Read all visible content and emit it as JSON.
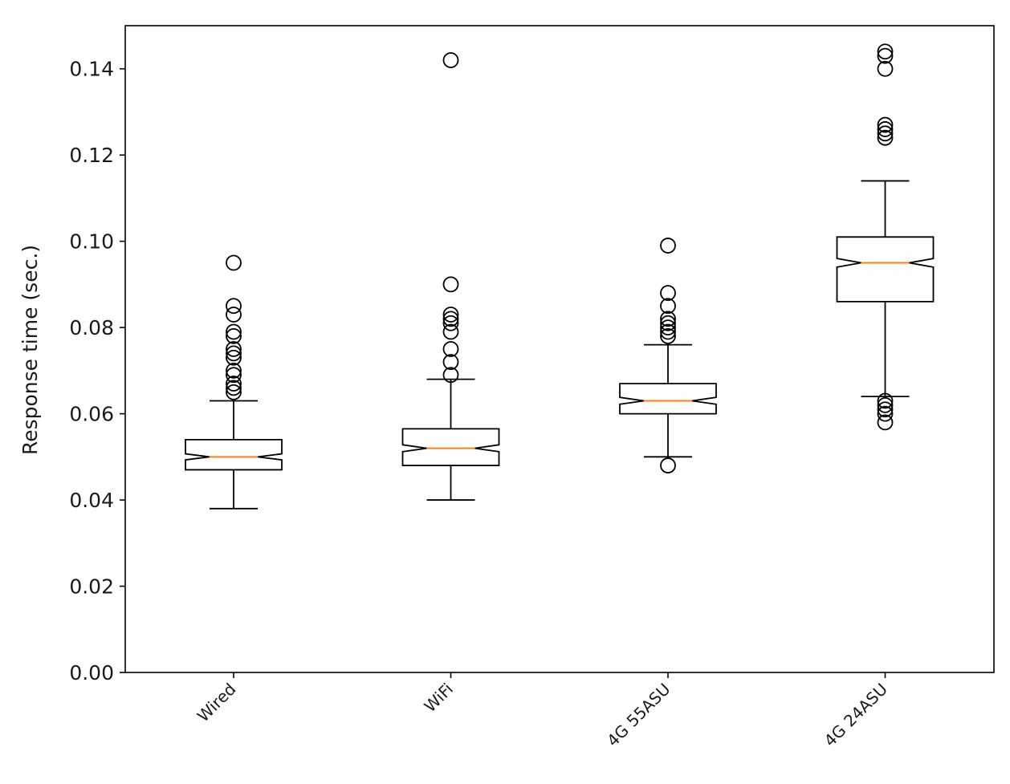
{
  "chart_data": {
    "type": "boxplot",
    "notched": true,
    "title": "",
    "xlabel": "",
    "ylabel": "Response time (sec.)",
    "ylim": [
      0.0,
      0.15
    ],
    "yticks": [
      0.0,
      0.02,
      0.04,
      0.06,
      0.08,
      0.1,
      0.12,
      0.14
    ],
    "ytick_labels": [
      "0.00",
      "0.02",
      "0.04",
      "0.06",
      "0.08",
      "0.10",
      "0.12",
      "0.14"
    ],
    "categories": [
      "Wired",
      "WiFi",
      "4G 55ASU",
      "4G 24ASU"
    ],
    "boxes": [
      {
        "label": "Wired",
        "whisker_low": 0.038,
        "q1": 0.047,
        "notch_low": 0.0493,
        "median": 0.05,
        "notch_high": 0.0507,
        "q3": 0.054,
        "whisker_high": 0.063,
        "outliers": [
          0.095,
          0.085,
          0.083,
          0.079,
          0.078,
          0.075,
          0.074,
          0.073,
          0.07,
          0.069,
          0.067,
          0.066,
          0.065
        ]
      },
      {
        "label": "WiFi",
        "whisker_low": 0.04,
        "q1": 0.048,
        "notch_low": 0.0512,
        "median": 0.052,
        "notch_high": 0.0528,
        "q3": 0.0565,
        "whisker_high": 0.068,
        "outliers": [
          0.142,
          0.09,
          0.083,
          0.082,
          0.081,
          0.079,
          0.075,
          0.072,
          0.069
        ]
      },
      {
        "label": "4G 55ASU",
        "whisker_low": 0.05,
        "q1": 0.06,
        "notch_low": 0.0622,
        "median": 0.063,
        "notch_high": 0.0638,
        "q3": 0.067,
        "whisker_high": 0.076,
        "outliers": [
          0.099,
          0.088,
          0.085,
          0.082,
          0.081,
          0.08,
          0.079,
          0.078,
          0.048
        ]
      },
      {
        "label": "4G 24ASU",
        "whisker_low": 0.064,
        "q1": 0.086,
        "notch_low": 0.094,
        "median": 0.095,
        "notch_high": 0.096,
        "q3": 0.101,
        "whisker_high": 0.114,
        "outliers": [
          0.144,
          0.143,
          0.14,
          0.127,
          0.126,
          0.125,
          0.124,
          0.063,
          0.062,
          0.061,
          0.06,
          0.058
        ]
      }
    ],
    "colors": {
      "box": "#000000",
      "median": "#ff7f0e",
      "outlier": "#000000"
    }
  }
}
